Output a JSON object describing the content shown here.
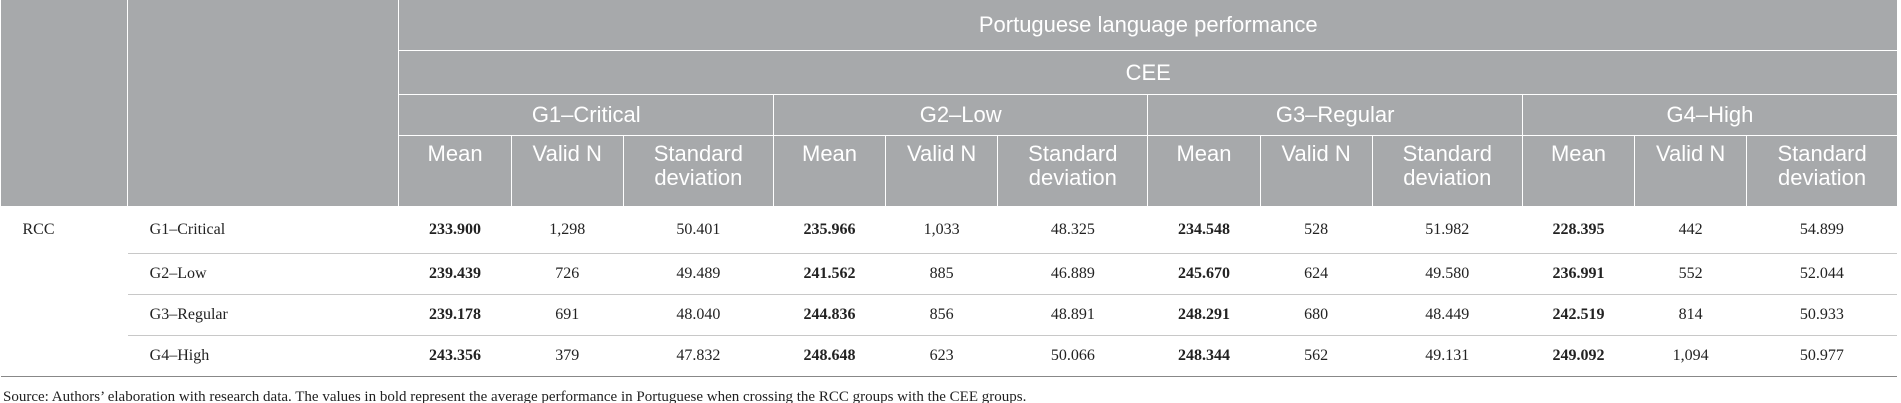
{
  "header": {
    "title": "Portuguese language performance",
    "subtitle": "CEE",
    "groups": [
      "G1–Critical",
      "G2–Low",
      "G3–Regular",
      "G4–High"
    ],
    "columns": [
      "Mean",
      "Valid N",
      "Standard deviation"
    ]
  },
  "table": {
    "row_group": "RCC",
    "rows": [
      {
        "label": "G1–Critical",
        "cells": [
          "233.900",
          "1,298",
          "50.401",
          "235.966",
          "1,033",
          "48.325",
          "234.548",
          "528",
          "51.982",
          "228.395",
          "442",
          "54.899"
        ]
      },
      {
        "label": "G2–Low",
        "cells": [
          "239.439",
          "726",
          "49.489",
          "241.562",
          "885",
          "46.889",
          "245.670",
          "624",
          "49.580",
          "236.991",
          "552",
          "52.044"
        ]
      },
      {
        "label": "G3–Regular",
        "cells": [
          "239.178",
          "691",
          "48.040",
          "244.836",
          "856",
          "48.891",
          "248.291",
          "680",
          "48.449",
          "242.519",
          "814",
          "50.933"
        ]
      },
      {
        "label": "G4–High",
        "cells": [
          "243.356",
          "379",
          "47.832",
          "248.648",
          "623",
          "50.066",
          "248.344",
          "562",
          "49.131",
          "249.092",
          "1,094",
          "50.977"
        ]
      }
    ]
  },
  "footer": {
    "source": "Source: Authors’ elaboration with research data. The values in bold represent the average performance in Portuguese when crossing the RCC groups with the CEE groups."
  }
}
